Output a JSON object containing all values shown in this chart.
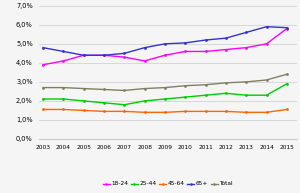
{
  "years": [
    2003,
    2004,
    2005,
    2006,
    2007,
    2008,
    2009,
    2010,
    2011,
    2012,
    2013,
    2014,
    2015
  ],
  "series": {
    "18-24": [
      3.9,
      4.1,
      4.4,
      4.4,
      4.3,
      4.1,
      4.4,
      4.6,
      4.6,
      4.7,
      4.8,
      5.0,
      5.8
    ],
    "25-44": [
      2.1,
      2.1,
      2.0,
      1.9,
      1.8,
      2.0,
      2.1,
      2.2,
      2.3,
      2.4,
      2.3,
      2.3,
      2.9
    ],
    "45-64": [
      1.55,
      1.55,
      1.5,
      1.45,
      1.45,
      1.4,
      1.4,
      1.45,
      1.45,
      1.45,
      1.4,
      1.4,
      1.55
    ],
    "65+": [
      4.8,
      4.6,
      4.4,
      4.4,
      4.5,
      4.8,
      5.0,
      5.05,
      5.2,
      5.3,
      5.6,
      5.9,
      5.85
    ],
    "Total": [
      2.7,
      2.7,
      2.65,
      2.6,
      2.55,
      2.65,
      2.7,
      2.8,
      2.85,
      2.95,
      3.0,
      3.1,
      3.4
    ]
  },
  "colors": {
    "18-24": "#FF00FF",
    "25-44": "#00CC00",
    "45-64": "#FF6600",
    "65+": "#3333CC",
    "Total": "#808060"
  },
  "ylim": [
    0.0,
    7.0
  ],
  "yticks": [
    0.0,
    1.0,
    2.0,
    3.0,
    4.0,
    5.0,
    6.0,
    7.0
  ],
  "background_color": "#f5f5f5",
  "grid_color": "#cccccc",
  "legend_order": [
    "18-24",
    "25-44",
    "45-64",
    "65+",
    "Total"
  ]
}
